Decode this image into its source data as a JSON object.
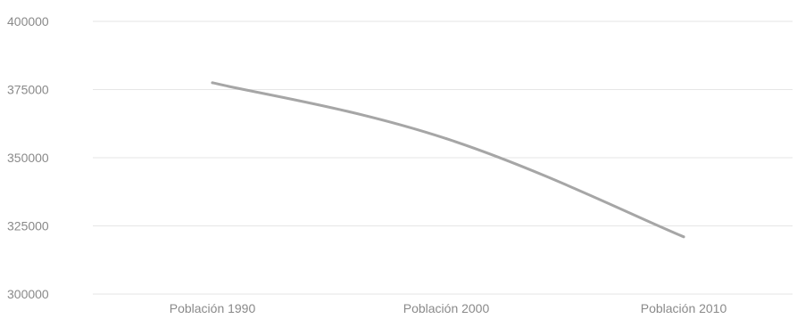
{
  "chart_data": {
    "type": "line",
    "title": "",
    "xlabel": "",
    "ylabel": "",
    "categories": [
      "Población 1990",
      "Población 2000",
      "Población 2010"
    ],
    "series": [
      {
        "values": [
          377500,
          357000,
          321000
        ]
      }
    ],
    "y_ticks": [
      400000,
      375000,
      350000,
      325000,
      300000
    ],
    "ylim": [
      300000,
      400000
    ],
    "grid": true,
    "smooth": true,
    "legend": "none",
    "colors": {
      "line": "#a6a6a6",
      "grid": "#e6e6e6",
      "text": "#8a8a8a"
    }
  }
}
